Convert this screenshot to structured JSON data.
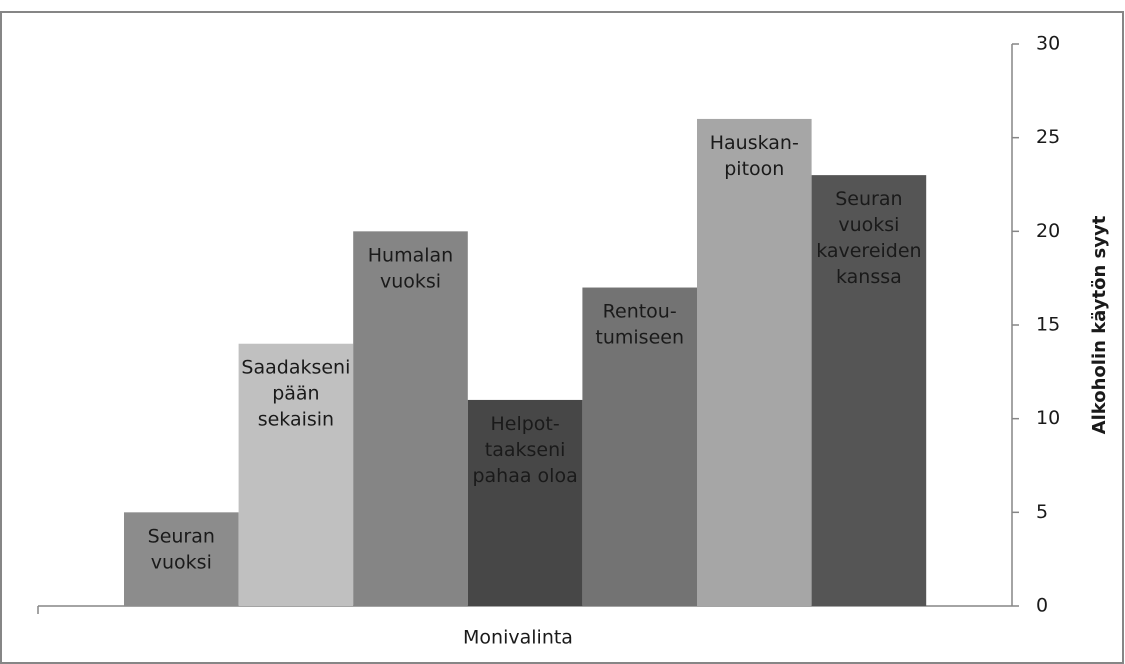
{
  "chart_data": {
    "type": "bar",
    "categories": [
      "Monivalinta"
    ],
    "y_label": "Alkoholin käytön syyt",
    "ylim": [
      0,
      30
    ],
    "yticks": [
      0,
      5,
      10,
      15,
      20,
      25,
      30
    ],
    "y_axis_side": "right",
    "series": [
      {
        "name": "Seuran\nvuoksi",
        "color": "#8c8c8c",
        "values": [
          5
        ]
      },
      {
        "name": "Saadakseni\npään\nsekaisin",
        "color": "#c0c0c0",
        "values": [
          14
        ]
      },
      {
        "name": "Humalan\nvuoksi",
        "color": "#858585",
        "values": [
          20
        ]
      },
      {
        "name": "Helpot-\ntaakseni\npahaa oloa",
        "color": "#474747",
        "values": [
          11
        ]
      },
      {
        "name": "Rentou-\ntumiseen",
        "color": "#737373",
        "values": [
          17
        ]
      },
      {
        "name": "Hauskan-\npitoon",
        "color": "#a6a6a6",
        "values": [
          26
        ]
      },
      {
        "name": "Seuran\nvuoksi\nkavereiden\nkanssa",
        "color": "#555555",
        "values": [
          23
        ]
      }
    ]
  }
}
